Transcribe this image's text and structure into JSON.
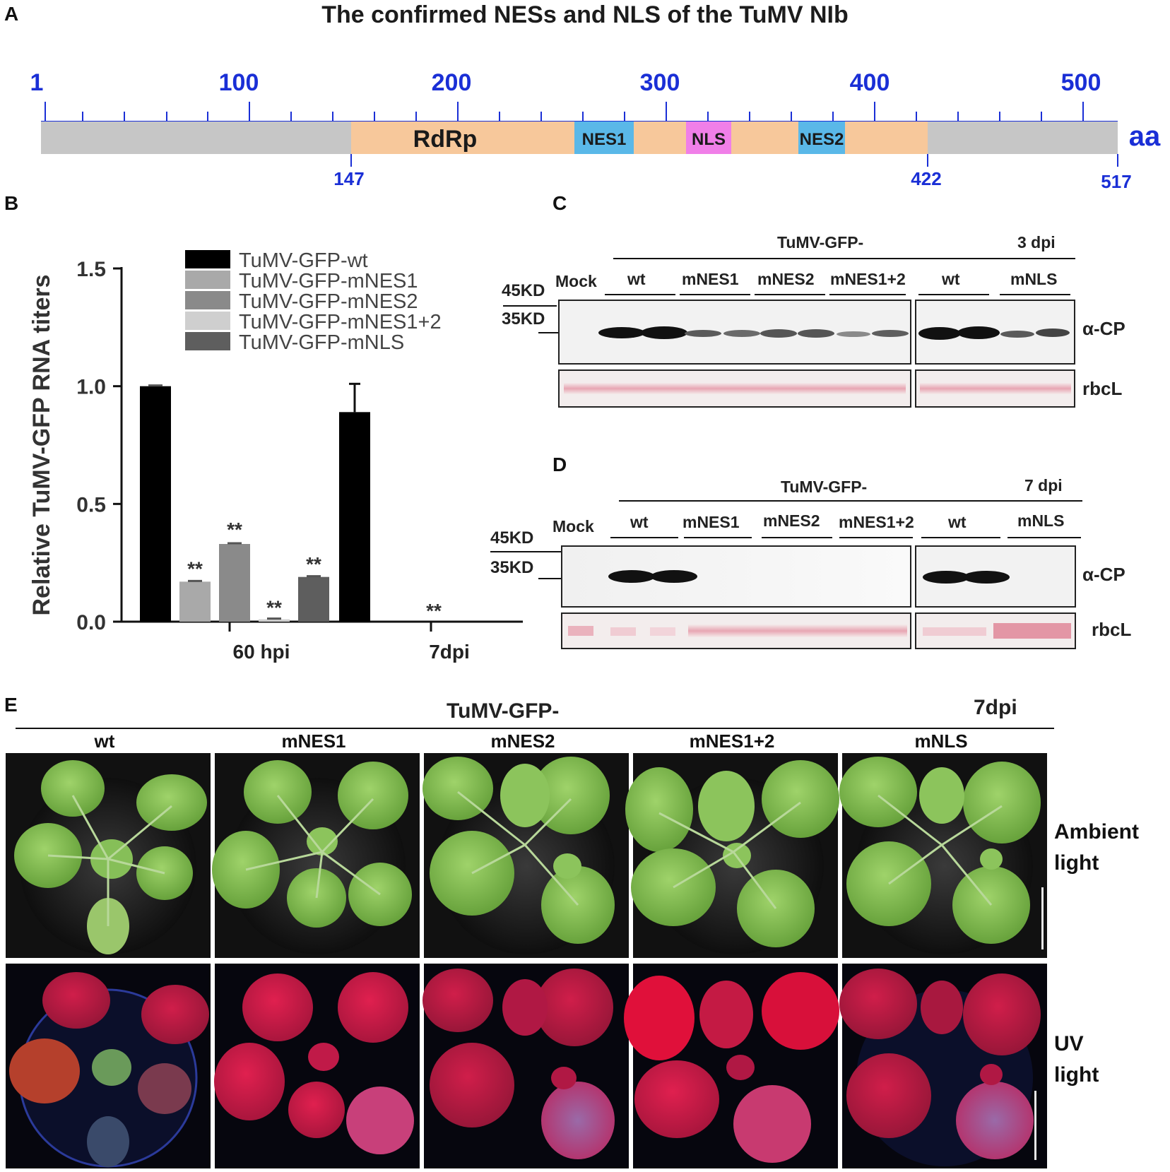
{
  "panelA": {
    "letter": "A",
    "title": "The confirmed NESs and NLS of the TuMV NIb",
    "ticks": [
      "1",
      "100",
      "200",
      "300",
      "400",
      "500"
    ],
    "unit": "aa",
    "domains": [
      {
        "name": "RdRp"
      },
      {
        "name": "NES1"
      },
      {
        "name": "NLS"
      },
      {
        "name": "NES2"
      }
    ],
    "boundaries": [
      "147",
      "422",
      "517"
    ],
    "colors": {
      "backbone": "#c6c6c6",
      "rdrp": "#f7c89b",
      "nes": "#5ab8e8",
      "nls": "#f07fe8",
      "blue": "#1a2fd6"
    }
  },
  "panelB": {
    "letter": "B",
    "chart_data": {
      "type": "bar",
      "ylabel": "Relative TuMV-GFP RNA titers",
      "yticks": [
        "0.0",
        "0.5",
        "1.0",
        "1.5"
      ],
      "ylim": [
        0,
        1.5
      ],
      "categories": [
        "60 hpi",
        "7dpi"
      ],
      "series": [
        {
          "name": "TuMV-GFP-wt",
          "color": "#000000",
          "values": [
            1.0,
            0.89
          ],
          "errors": [
            0.0,
            0.12
          ]
        },
        {
          "name": "TuMV-GFP-mNES1",
          "color": "#a9a9a9",
          "values": [
            0.17,
            0.0
          ],
          "errors": [
            0.008,
            0.0
          ]
        },
        {
          "name": "TuMV-GFP-mNES2",
          "color": "#8a8a8a",
          "values": [
            0.33,
            0.0
          ],
          "errors": [
            0.015,
            0.0
          ]
        },
        {
          "name": "TuMV-GFP-mNES1+2",
          "color": "#cfcfcf",
          "values": [
            0.01,
            0.0
          ],
          "errors": [
            0.003,
            0.0
          ]
        },
        {
          "name": "TuMV-GFP-mNLS",
          "color": "#5e5e5e",
          "values": [
            0.19,
            0.0
          ],
          "errors": [
            0.008,
            0.0
          ]
        }
      ],
      "significance": "**"
    }
  },
  "panelC": {
    "letter": "C",
    "header": "TuMV-GFP-",
    "time": "3 dpi",
    "mock": "Mock",
    "groups": [
      "wt",
      "mNES1",
      "mNES2",
      "mNES1+2",
      "wt",
      "mNLS"
    ],
    "markers": [
      "45KD",
      "35KD"
    ],
    "rows": [
      "α-CP",
      "rbcL"
    ]
  },
  "panelD": {
    "letter": "D",
    "header": "TuMV-GFP-",
    "time": "7 dpi",
    "mock": "Mock",
    "groups": [
      "wt",
      "mNES1",
      "mNES2",
      "mNES1+2",
      "wt",
      "mNLS"
    ],
    "markers": [
      "45KD",
      "35KD"
    ],
    "rows": [
      "α-CP",
      "rbcL"
    ]
  },
  "panelE": {
    "letter": "E",
    "header": "TuMV-GFP-",
    "time": "7dpi",
    "columns": [
      "wt",
      "mNES1",
      "mNES2",
      "mNES1+2",
      "mNLS"
    ],
    "rows": [
      {
        "line1": "Ambient",
        "line2": "light"
      },
      {
        "line1": "UV",
        "line2": "light"
      }
    ]
  }
}
